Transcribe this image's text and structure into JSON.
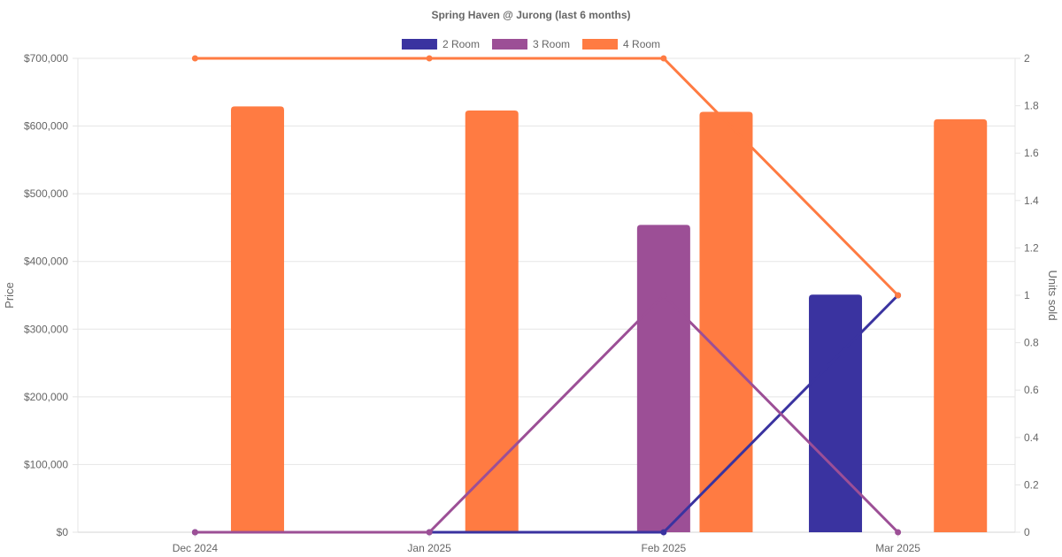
{
  "chart_data": {
    "type": "bar",
    "title": "Spring Haven @ Jurong (last 6 months)",
    "categories": [
      "Dec 2024",
      "Jan 2025",
      "Feb 2025",
      "Mar 2025"
    ],
    "y_left": {
      "label": "Price",
      "ylim": [
        0,
        700000
      ],
      "ticks": [
        "$0",
        "$100,000",
        "$200,000",
        "$300,000",
        "$400,000",
        "$500,000",
        "$600,000",
        "$700,000"
      ]
    },
    "y_right": {
      "label": "Units sold",
      "ylim": [
        0,
        2
      ],
      "ticks": [
        "0",
        "0.2",
        "0.4",
        "0.6",
        "0.8",
        "1",
        "1.2",
        "1.4",
        "1.6",
        "1.8",
        "2"
      ]
    },
    "grid": true,
    "legend_position": "top",
    "series": [
      {
        "name": "2 Room",
        "color": "#3a33a0",
        "price": [
          null,
          null,
          null,
          351000
        ],
        "units": [
          0,
          0,
          0,
          1
        ]
      },
      {
        "name": "3 Room",
        "color": "#9c4f96",
        "price": [
          null,
          null,
          454000,
          null
        ],
        "units": [
          0,
          0,
          1,
          0
        ]
      },
      {
        "name": "4 Room",
        "color": "#ff7b42",
        "price": [
          629000,
          623000,
          621000,
          610000
        ],
        "units": [
          2,
          2,
          2,
          1
        ]
      }
    ]
  }
}
